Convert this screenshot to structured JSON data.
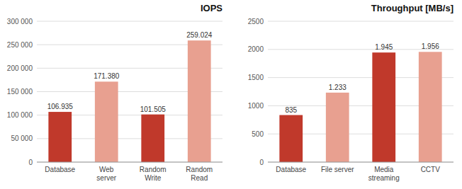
{
  "chart_data": [
    {
      "type": "bar",
      "title": "IOPS",
      "categories": [
        "Database",
        "Web\nserver",
        "Random\nWrite",
        "Random\nRead"
      ],
      "values": [
        106935,
        171380,
        101505,
        259024
      ],
      "value_labels": [
        "106.935",
        "171.380",
        "101.505",
        "259.024"
      ],
      "colors": [
        "#c0392b",
        "#e8a090",
        "#c0392b",
        "#e8a090"
      ],
      "ylim": [
        0,
        300000
      ],
      "yticks": [
        0,
        {
          "value": 50000,
          "label": "50 000"
        },
        {
          "value": 100000,
          "label": "100 000"
        },
        {
          "value": 150000,
          "label": "150 000"
        },
        {
          "value": 200000,
          "label": "200 000"
        },
        {
          "value": 250000,
          "label": "250 000"
        },
        {
          "value": 300000,
          "label": "300 000"
        }
      ],
      "grid": true,
      "data_labels": true
    },
    {
      "type": "bar",
      "title": "Throughput [MB/s]",
      "categories": [
        "Database",
        "File server",
        "Media\nstreaming",
        "CCTV"
      ],
      "values": [
        835,
        1233,
        1945,
        1956
      ],
      "value_labels": [
        "835",
        "1.233",
        "1.945",
        "1.956"
      ],
      "colors": [
        "#c0392b",
        "#e8a090",
        "#c0392b",
        "#e8a090"
      ],
      "ylim": [
        0,
        2500
      ],
      "yticks": [
        0,
        500,
        1000,
        1500,
        2000,
        2500
      ],
      "grid": true,
      "data_labels": true
    }
  ]
}
